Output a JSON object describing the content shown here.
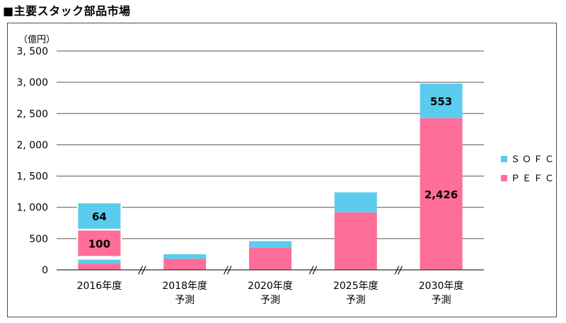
{
  "title": "■主要スタック部品市場",
  "chart_data": {
    "type": "bar",
    "stacked": true,
    "unit_label": "（億円）",
    "ylim": [
      0,
      3500
    ],
    "yticks": [
      "0",
      "500",
      "1, 000",
      "1, 500",
      "2, 000",
      "2, 500",
      "3, 000",
      "3, 500"
    ],
    "ytick_values": [
      0,
      500,
      1000,
      1500,
      2000,
      2500,
      3000,
      3500
    ],
    "categories": [
      {
        "line1": "2016年度",
        "line2": ""
      },
      {
        "line1": "2018年度",
        "line2": "予測"
      },
      {
        "line1": "2020年度",
        "line2": "予測"
      },
      {
        "line1": "2025年度",
        "line2": "予測"
      },
      {
        "line1": "2030年度",
        "line2": "予測"
      }
    ],
    "axis_break_symbol": "//",
    "series": [
      {
        "name": "ＰＥＦＣ",
        "color": "#ff6e98",
        "values": [
          100,
          175,
          355,
          920,
          2426
        ]
      },
      {
        "name": "ＳＯＦＣ",
        "color": "#5bcbee",
        "values": [
          64,
          75,
          105,
          320,
          553
        ]
      }
    ],
    "data_labels": [
      {
        "text": "100",
        "category": 0,
        "series": 0,
        "callout": true,
        "callout_value": 425
      },
      {
        "text": "64",
        "category": 0,
        "series": 1,
        "callout": true,
        "callout_value": 860
      },
      {
        "text": "2,426",
        "category": 4,
        "series": 0,
        "callout": false
      },
      {
        "text": "553",
        "category": 4,
        "series": 1,
        "callout": false
      }
    ],
    "legend_position": "right",
    "grid": true
  }
}
